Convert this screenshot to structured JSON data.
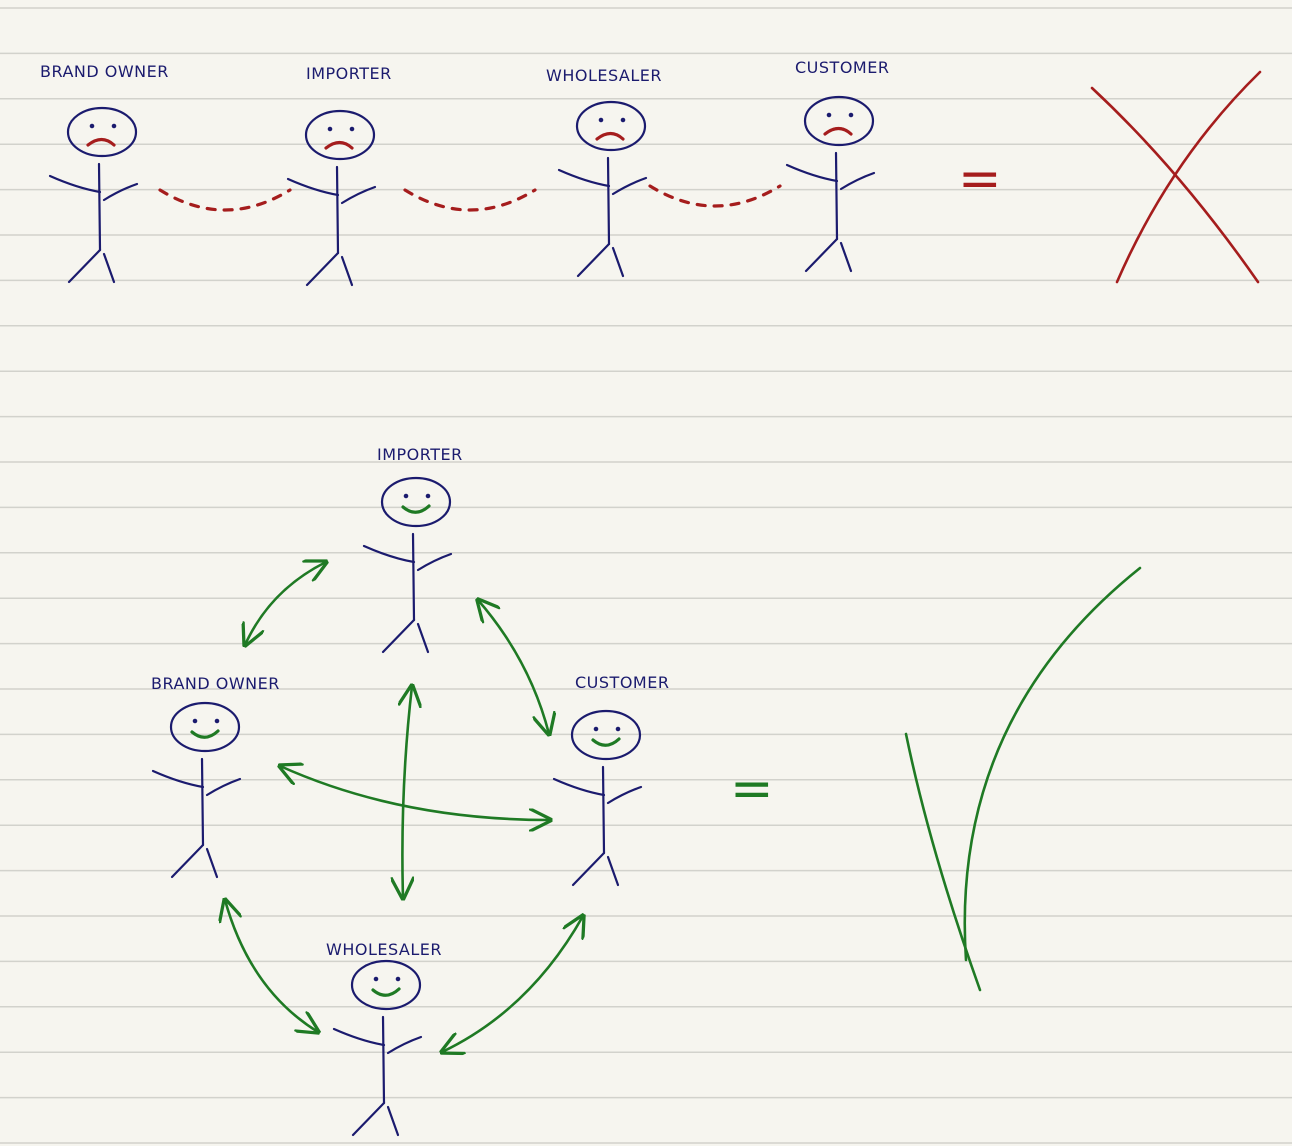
{
  "colors": {
    "paper": "#f6f5ef",
    "rule": "#d2d2cc",
    "ink": "#1b1b6e",
    "bad": "#a51d1d",
    "good": "#1f7a24"
  },
  "top_chain": {
    "figures": [
      {
        "label": "BRAND OWNER",
        "mood": "sad"
      },
      {
        "label": "IMPORTER",
        "mood": "sad"
      },
      {
        "label": "WHOLESALER",
        "mood": "sad"
      },
      {
        "label": "CUSTOMER",
        "mood": "sad"
      }
    ],
    "equals": "=",
    "result_icon": "x-mark-icon"
  },
  "network": {
    "figures": [
      {
        "label": "IMPORTER",
        "mood": "happy"
      },
      {
        "label": "BRAND OWNER",
        "mood": "happy"
      },
      {
        "label": "CUSTOMER",
        "mood": "happy"
      },
      {
        "label": "WHOLESALER",
        "mood": "happy"
      }
    ],
    "connections": [
      [
        "BRAND OWNER",
        "IMPORTER"
      ],
      [
        "IMPORTER",
        "CUSTOMER"
      ],
      [
        "IMPORTER",
        "WHOLESALER"
      ],
      [
        "BRAND OWNER",
        "CUSTOMER"
      ],
      [
        "BRAND OWNER",
        "WHOLESALER"
      ],
      [
        "CUSTOMER",
        "WHOLESALER"
      ]
    ],
    "equals": "=",
    "result_icon": "check-mark-icon"
  }
}
